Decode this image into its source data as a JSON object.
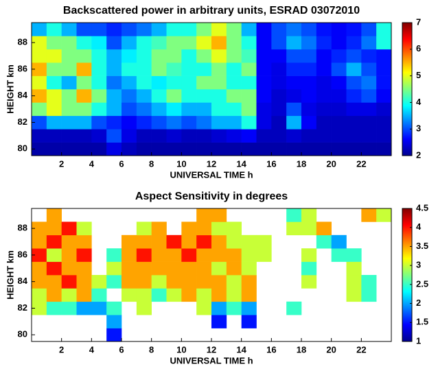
{
  "chart_data": [
    {
      "type": "heatmap",
      "title": "Backscattered power in arbitrary units, ESRAD 03072010",
      "xlabel": "UNIVERSAL TIME h",
      "ylabel": "HEIGHT km",
      "colormap": "jet",
      "x": [
        0.5,
        1.5,
        2.5,
        3.5,
        4.5,
        5.5,
        6.5,
        7.5,
        8.5,
        9.5,
        10.5,
        11.5,
        12.5,
        13.5,
        14.5,
        15.5,
        16.5,
        17.5,
        18.5,
        19.5,
        20.5,
        21.5,
        22.5,
        23.5
      ],
      "y": [
        80,
        81,
        82,
        83,
        84,
        85,
        86,
        87,
        88,
        89
      ],
      "z": [
        [
          2.2,
          2.2,
          2.2,
          2.2,
          2.2,
          2.5,
          2.3,
          2.2,
          2.2,
          2.2,
          2.2,
          2.2,
          2.2,
          2.2,
          2.2,
          2.2,
          2.2,
          2.2,
          2.2,
          2.2,
          2.2,
          2.2,
          2.2,
          2.2
        ],
        [
          2.3,
          2.3,
          2.3,
          2.3,
          2.4,
          3,
          2.5,
          2.3,
          2.3,
          2.4,
          2.3,
          2.3,
          2.4,
          2.5,
          2.6,
          2.3,
          2.3,
          2.4,
          2.3,
          2.3,
          2.3,
          2.3,
          2.3,
          2.3
        ],
        [
          3,
          3.5,
          3.5,
          3.5,
          3,
          2.8,
          2.6,
          2.8,
          3,
          3.2,
          3,
          3.2,
          3.5,
          3.5,
          4,
          2.5,
          2.3,
          3.5,
          2.6,
          2.3,
          2.3,
          2.3,
          2.3,
          2.3
        ],
        [
          4.5,
          5,
          4.5,
          4.5,
          4,
          3.5,
          3,
          3.2,
          3.5,
          3.8,
          3.5,
          3.5,
          4,
          4,
          4.5,
          2.5,
          2.4,
          3,
          2.5,
          2.4,
          2.4,
          2.5,
          2.5,
          2.4
        ],
        [
          5.5,
          5,
          4.5,
          5.5,
          4.5,
          3.5,
          3.2,
          3.5,
          4,
          4.5,
          4,
          4,
          4,
          4.5,
          4.5,
          2.6,
          2.4,
          2.5,
          2.6,
          2.5,
          2.5,
          2.8,
          3,
          2.6
        ],
        [
          5,
          4,
          3.5,
          4.5,
          4,
          3.2,
          3.5,
          4,
          3.8,
          4,
          4,
          4.5,
          4.5,
          4,
          4,
          2.6,
          2.5,
          2.6,
          2.6,
          2.5,
          2.6,
          3,
          3.2,
          2.7
        ],
        [
          5.5,
          4.5,
          4.5,
          5.5,
          4,
          3.5,
          4,
          4,
          4.5,
          4.2,
          4,
          4,
          4.5,
          4,
          4.5,
          2.6,
          2.5,
          2.8,
          2.8,
          2.6,
          3,
          3.5,
          3,
          2.7
        ],
        [
          5,
          5,
          4.5,
          4.5,
          4,
          3.5,
          3.8,
          4,
          4.5,
          4.5,
          4,
          4.5,
          5,
          4.5,
          4.2,
          2.6,
          2.6,
          3,
          3,
          2.6,
          2.8,
          3,
          2.8,
          2.7
        ],
        [
          5,
          4.5,
          4.5,
          4,
          3.8,
          3,
          3.5,
          4,
          4.2,
          4.5,
          4.5,
          5,
          5.5,
          4.5,
          4,
          2.6,
          3,
          3.5,
          3.2,
          2.8,
          2.6,
          2.8,
          3.2,
          4
        ],
        [
          3.5,
          4,
          3.5,
          3,
          3,
          2.8,
          3,
          3.2,
          3.5,
          4,
          4,
          4.5,
          5,
          4.5,
          3.5,
          2.6,
          3,
          3.2,
          3,
          2.7,
          2.6,
          2.7,
          3,
          4
        ]
      ],
      "xlim": [
        0,
        24
      ],
      "ylim": [
        79.5,
        89.5
      ],
      "xticks": [
        2,
        4,
        6,
        8,
        10,
        12,
        14,
        16,
        18,
        20,
        22
      ],
      "yticks": [
        80,
        82,
        84,
        86,
        88
      ],
      "clim": [
        2,
        7
      ],
      "cticks": [
        2,
        3,
        4,
        5,
        6,
        7
      ]
    },
    {
      "type": "heatmap",
      "title": "Aspect Sensitivity in degrees",
      "xlabel": "UNIVERSAL TIME h",
      "ylabel": "HEIGHT km",
      "colormap": "jet",
      "x": [
        0.5,
        1.5,
        2.5,
        3.5,
        4.5,
        5.5,
        6.5,
        7.5,
        8.5,
        9.5,
        10.5,
        11.5,
        12.5,
        13.5,
        14.5,
        15.5,
        16.5,
        17.5,
        18.5,
        19.5,
        20.5,
        21.5,
        22.5,
        23.5
      ],
      "y": [
        80,
        81,
        82,
        83,
        84,
        85,
        86,
        87,
        88,
        89
      ],
      "z": [
        [
          null,
          null,
          null,
          null,
          null,
          1.5,
          null,
          null,
          null,
          null,
          null,
          null,
          null,
          null,
          null,
          null,
          null,
          null,
          null,
          null,
          null,
          null,
          null,
          null
        ],
        [
          null,
          null,
          null,
          null,
          null,
          2,
          null,
          null,
          null,
          null,
          null,
          null,
          1.5,
          null,
          1.5,
          null,
          null,
          null,
          null,
          null,
          null,
          null,
          null,
          null
        ],
        [
          3,
          2.5,
          2.5,
          2,
          2,
          2.5,
          null,
          3,
          null,
          null,
          null,
          3,
          2,
          2.5,
          2,
          null,
          null,
          2.5,
          null,
          null,
          null,
          null,
          null,
          null
        ],
        [
          3,
          3.5,
          3,
          3.5,
          2.5,
          null,
          3,
          3,
          2.5,
          3,
          3.5,
          3,
          3.5,
          3,
          3.5,
          null,
          null,
          null,
          null,
          null,
          null,
          3,
          2.5,
          null
        ],
        [
          3.5,
          3.5,
          4,
          3.5,
          3,
          2.5,
          3.5,
          3.5,
          3,
          3.5,
          3.5,
          3.5,
          3.5,
          3,
          3.5,
          null,
          null,
          null,
          3,
          null,
          null,
          3,
          2.5,
          null
        ],
        [
          3.5,
          4,
          3.5,
          3.5,
          null,
          3,
          3.5,
          3.5,
          3.5,
          3.5,
          3.5,
          3.5,
          3,
          3.5,
          3,
          null,
          null,
          null,
          2.5,
          null,
          null,
          3,
          null,
          null
        ],
        [
          4,
          3,
          3.5,
          4,
          null,
          2.5,
          3.5,
          4,
          3.5,
          3.5,
          4,
          3.5,
          3.5,
          3.5,
          3,
          3,
          null,
          null,
          3,
          null,
          2.5,
          2.5,
          null,
          null
        ],
        [
          3.5,
          4,
          3.5,
          3.5,
          null,
          null,
          3.5,
          3.5,
          3.5,
          4,
          3.5,
          4,
          3.5,
          3,
          3,
          3,
          null,
          null,
          null,
          2.5,
          2,
          null,
          null,
          null
        ],
        [
          3.5,
          3.5,
          4,
          3,
          null,
          null,
          null,
          3,
          3.5,
          null,
          3.5,
          3.5,
          3,
          3,
          null,
          null,
          null,
          3,
          3,
          3.5,
          null,
          null,
          null,
          null
        ],
        [
          null,
          3.5,
          null,
          null,
          null,
          null,
          null,
          null,
          null,
          null,
          null,
          3.5,
          3.5,
          null,
          null,
          null,
          null,
          2.5,
          3,
          null,
          null,
          null,
          3.5,
          3
        ]
      ],
      "xlim": [
        0,
        24
      ],
      "ylim": [
        79.5,
        89.5
      ],
      "xticks": [
        2,
        4,
        6,
        8,
        10,
        12,
        14,
        16,
        18,
        20,
        22
      ],
      "yticks": [
        80,
        82,
        84,
        86,
        88
      ],
      "clim": [
        1,
        4.5
      ],
      "cticks": [
        1,
        1.5,
        2,
        2.5,
        3,
        3.5,
        4,
        4.5
      ]
    }
  ]
}
